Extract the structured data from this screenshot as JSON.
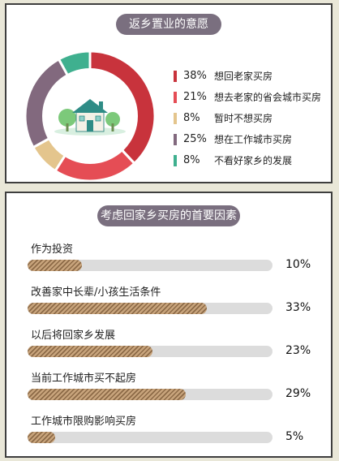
{
  "top_panel": {
    "title": "返乡置业的意愿"
  },
  "bottom_panel": {
    "title": "考虑回家乡买房的首要因素"
  },
  "chart_data": [
    {
      "type": "pie",
      "title": "返乡置业的意愿",
      "slices": [
        {
          "label": "想回老家买房",
          "value": 38,
          "display": "38%",
          "color": "#c8333c"
        },
        {
          "label": "想去老家的省会城市买房",
          "value": 21,
          "display": "21%",
          "color": "#e54d55"
        },
        {
          "label": "暂时不想买房",
          "value": 8,
          "display": "8%",
          "color": "#e4c58d"
        },
        {
          "label": "想在工作城市买房",
          "value": 25,
          "display": "25%",
          "color": "#82697e"
        },
        {
          "label": "不看好家乡的发展",
          "value": 8,
          "display": "8%",
          "color": "#3fb08f"
        }
      ],
      "center_icon": "house-icon"
    },
    {
      "type": "bar",
      "orientation": "horizontal",
      "title": "考虑回家乡买房的首要因素",
      "categories": [
        "作为投资",
        "改善家中长辈/小孩生活条件",
        "以后将回家乡发展",
        "当前工作城市买不起房",
        "工作城市限购影响买房"
      ],
      "values": [
        10,
        33,
        23,
        29,
        5
      ],
      "display_values": [
        "10%",
        "33%",
        "23%",
        "29%",
        "5%"
      ],
      "xlim": [
        0,
        45
      ],
      "bar_color": "#b28b62"
    }
  ]
}
